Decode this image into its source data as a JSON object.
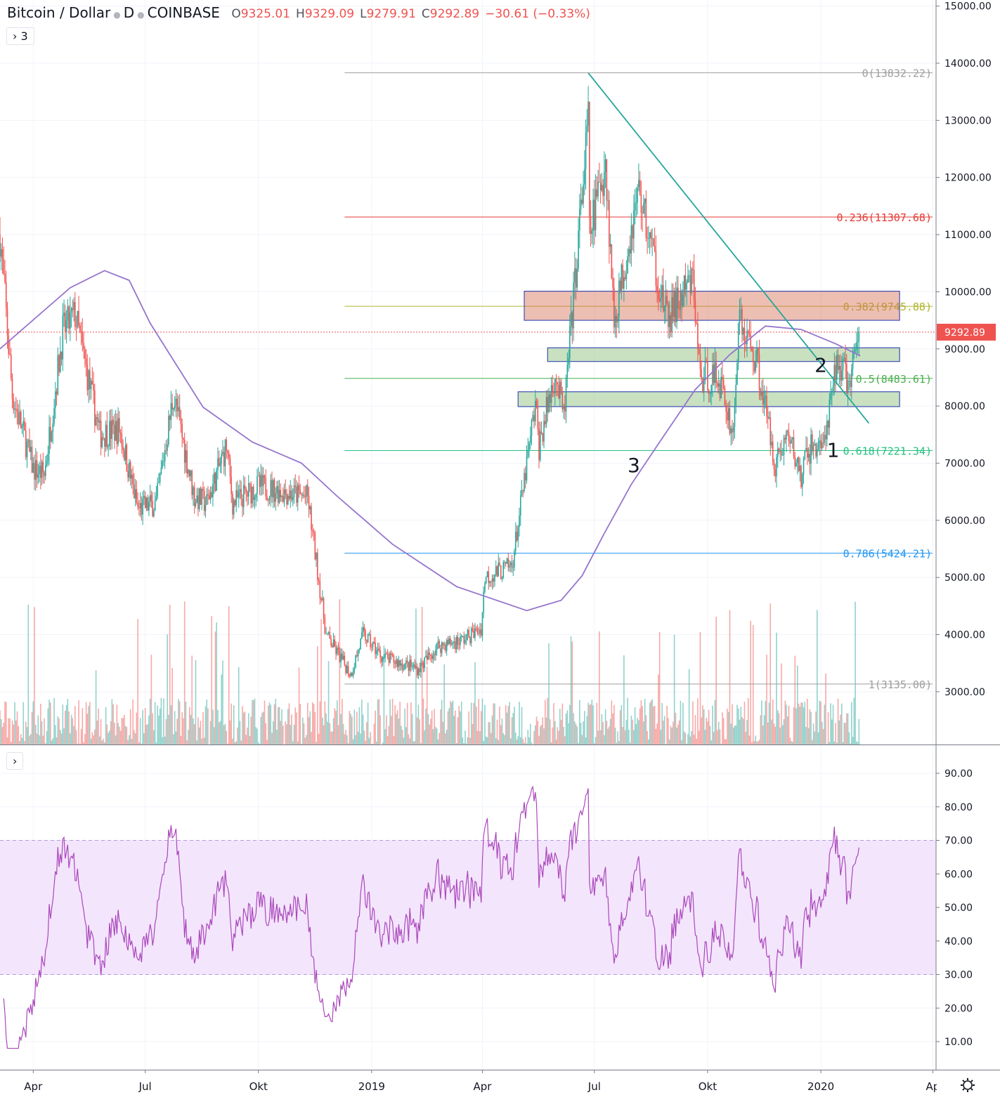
{
  "header": {
    "symbol": "Bitcoin / Dollar",
    "interval": "D",
    "exchange": "COINBASE",
    "open_label": "O",
    "open": "9325.01",
    "high_label": "H",
    "high": "9329.09",
    "low_label": "L",
    "low": "9279.91",
    "close_label": "C",
    "close": "9292.89",
    "change": "−30.61 (−0.33%)",
    "indicators_toggle": "› 3",
    "rsi_toggle": "›"
  },
  "colors": {
    "up": "#26a69a",
    "down": "#ef5350",
    "ma": "#9575cd",
    "rsi": "#ab47bc",
    "rsi_band": "#f3e5fc",
    "trendline": "#26a69a"
  },
  "chart_data": [
    {
      "type": "candlestick",
      "title": "Bitcoin / Dollar · D · COINBASE",
      "ylim": [
        2150,
        15100
      ],
      "y_ticks": [
        "3000.00",
        "4000.00",
        "5000.00",
        "6000.00",
        "7000.00",
        "8000.00",
        "9000.00",
        "10000.00",
        "11000.00",
        "12000.00",
        "13000.00",
        "14000.00",
        "15000.00"
      ],
      "last_price_label": "9292.89",
      "x_ticks": [
        {
          "date": "2018-04-01",
          "label": "Apr"
        },
        {
          "date": "2018-07-01",
          "label": "Jul"
        },
        {
          "date": "2018-10-01",
          "label": "Okt"
        },
        {
          "date": "2019-01-01",
          "label": "2019"
        },
        {
          "date": "2019-04-01",
          "label": "Apr"
        },
        {
          "date": "2019-07-01",
          "label": "Jul"
        },
        {
          "date": "2019-10-01",
          "label": "Okt"
        },
        {
          "date": "2020-01-01",
          "label": "2020"
        },
        {
          "date": "2020-04-01",
          "label": "Ap"
        }
      ],
      "x_range": [
        "2018-03-05",
        "2020-04-10"
      ],
      "close_keypoints": [
        [
          "2018-03-05",
          11000
        ],
        [
          "2018-03-15",
          8200
        ],
        [
          "2018-04-01",
          6900
        ],
        [
          "2018-04-10",
          6800
        ],
        [
          "2018-04-25",
          9300
        ],
        [
          "2018-05-05",
          9600
        ],
        [
          "2018-05-25",
          7500
        ],
        [
          "2018-06-10",
          7600
        ],
        [
          "2018-06-25",
          6200
        ],
        [
          "2018-07-10",
          6300
        ],
        [
          "2018-07-24",
          8200
        ],
        [
          "2018-08-10",
          6400
        ],
        [
          "2018-08-20",
          6300
        ],
        [
          "2018-09-05",
          7300
        ],
        [
          "2018-09-10",
          6300
        ],
        [
          "2018-10-01",
          6600
        ],
        [
          "2018-11-10",
          6400
        ],
        [
          "2018-11-15",
          5600
        ],
        [
          "2018-11-25",
          4000
        ],
        [
          "2018-12-15",
          3300
        ],
        [
          "2018-12-25",
          4000
        ],
        [
          "2019-01-10",
          3600
        ],
        [
          "2019-02-08",
          3400
        ],
        [
          "2019-02-24",
          3800
        ],
        [
          "2019-03-15",
          3900
        ],
        [
          "2019-03-31",
          4100
        ],
        [
          "2019-04-03",
          5000
        ],
        [
          "2019-04-25",
          5200
        ],
        [
          "2019-05-14",
          8000
        ],
        [
          "2019-05-17",
          7300
        ],
        [
          "2019-05-30",
          8600
        ],
        [
          "2019-06-06",
          7800
        ],
        [
          "2019-06-26",
          13000
        ],
        [
          "2019-06-27",
          11000
        ],
        [
          "2019-07-10",
          12300
        ],
        [
          "2019-07-17",
          9500
        ],
        [
          "2019-08-06",
          11800
        ],
        [
          "2019-08-29",
          9500
        ],
        [
          "2019-09-19",
          10200
        ],
        [
          "2019-09-25",
          8500
        ],
        [
          "2019-10-10",
          8500
        ],
        [
          "2019-10-22",
          7500
        ],
        [
          "2019-10-26",
          9500
        ],
        [
          "2019-11-10",
          8800
        ],
        [
          "2019-11-25",
          7000
        ],
        [
          "2019-12-05",
          7500
        ],
        [
          "2019-12-17",
          6700
        ],
        [
          "2019-12-20",
          7200
        ],
        [
          "2020-01-05",
          7400
        ],
        [
          "2020-01-14",
          8800
        ],
        [
          "2020-01-25",
          8400
        ],
        [
          "2020-02-01",
          9293
        ]
      ],
      "moving_average": [
        [
          "2018-03-05",
          9000
        ],
        [
          "2018-05-01",
          10070
        ],
        [
          "2018-05-29",
          10370
        ],
        [
          "2018-06-18",
          10200
        ],
        [
          "2018-07-05",
          9450
        ],
        [
          "2018-08-17",
          7980
        ],
        [
          "2018-09-26",
          7370
        ],
        [
          "2018-11-05",
          7000
        ],
        [
          "2018-12-03",
          6440
        ],
        [
          "2019-01-18",
          5580
        ],
        [
          "2019-03-11",
          4840
        ],
        [
          "2019-05-07",
          4420
        ],
        [
          "2019-06-04",
          4600
        ],
        [
          "2019-06-21",
          5030
        ],
        [
          "2019-07-09",
          5770
        ],
        [
          "2019-07-31",
          6630
        ],
        [
          "2019-08-23",
          7370
        ],
        [
          "2019-09-21",
          8290
        ],
        [
          "2019-10-19",
          8900
        ],
        [
          "2019-11-17",
          9400
        ],
        [
          "2019-12-16",
          9340
        ],
        [
          "2020-01-13",
          9090
        ],
        [
          "2020-02-02",
          8880
        ]
      ],
      "fibonacci": {
        "start_date": "2018-12-10",
        "end_date": "2020-04-10",
        "levels": [
          {
            "label": "0(13832.22)",
            "price": 13832.22,
            "color": "#9e9e9e"
          },
          {
            "label": "0.236(11307.68)",
            "price": 11307.68,
            "color": "#e53935"
          },
          {
            "label": "0.382(9745.88)",
            "price": 9745.88,
            "color": "#afb42b"
          },
          {
            "label": "0.5(8483.61)",
            "price": 8483.61,
            "color": "#4caf50"
          },
          {
            "label": "0.618(7221.34)",
            "price": 7221.34,
            "color": "#26c281"
          },
          {
            "label": "0.786(5424.21)",
            "price": 5424.21,
            "color": "#2196f3"
          },
          {
            "label": "1(3135.00)",
            "price": 3135.0,
            "color": "#9e9e9e"
          }
        ]
      },
      "trendline": [
        [
          "2019-06-26",
          13830
        ],
        [
          "2020-02-09",
          7700
        ]
      ],
      "zones": [
        {
          "kind": "resistance",
          "from": "2019-05-05",
          "to": "2020-03-05",
          "low": 9500,
          "high": 10010,
          "fill": "rgba(216,111,85,0.45)"
        },
        {
          "kind": "support",
          "from": "2019-05-24",
          "to": "2020-03-05",
          "low": 8780,
          "high": 9020,
          "fill": "rgba(120,180,100,0.4)"
        },
        {
          "kind": "support",
          "from": "2019-04-30",
          "to": "2020-03-05",
          "low": 7990,
          "high": 8250,
          "fill": "rgba(120,180,100,0.4)"
        }
      ],
      "annotations": [
        {
          "text": "1",
          "date": "2020-01-11",
          "price": 7230
        },
        {
          "text": "2",
          "date": "2020-01-01",
          "price": 8720
        },
        {
          "text": "3",
          "date": "2019-08-02",
          "price": 6970
        }
      ]
    },
    {
      "type": "line",
      "indicator": "RSI",
      "ylim": [
        4,
        98
      ],
      "y_ticks": [
        "10.00",
        "20.00",
        "30.00",
        "40.00",
        "50.00",
        "60.00",
        "70.00",
        "80.00",
        "90.00"
      ],
      "band": [
        30,
        70
      ]
    }
  ]
}
